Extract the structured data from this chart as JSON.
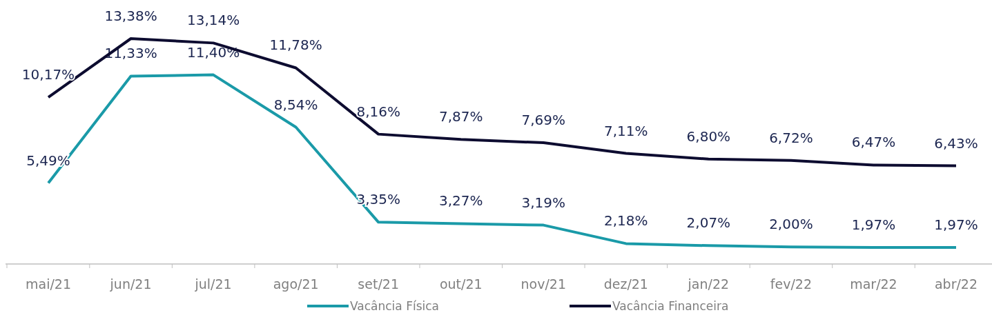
{
  "chart_data": {
    "type": "line",
    "categories": [
      "mai/21",
      "jun/21",
      "jul/21",
      "ago/21",
      "set/21",
      "out/21",
      "nov/21",
      "dez/21",
      "jan/22",
      "fev/22",
      "mar/22",
      "abr/22"
    ],
    "series": [
      {
        "name": "Vacância Física",
        "color": "#1a9aa8",
        "values": [
          5.49,
          11.33,
          11.4,
          8.54,
          3.35,
          3.27,
          3.19,
          2.18,
          2.07,
          2.0,
          1.97,
          1.97
        ],
        "value_labels": [
          "5,49%",
          "11,33%",
          "11,40%",
          "8,54%",
          "3,35%",
          "3,27%",
          "3,19%",
          "2,18%",
          "2,07%",
          "2,00%",
          "1,97%",
          "1,97%"
        ]
      },
      {
        "name": "Vacância Financeira",
        "color": "#0d0c30",
        "values": [
          10.17,
          13.38,
          13.14,
          11.78,
          8.16,
          7.87,
          7.69,
          7.11,
          6.8,
          6.72,
          6.47,
          6.43
        ],
        "value_labels": [
          "10,17%",
          "13,38%",
          "13,14%",
          "11,78%",
          "8,16%",
          "7,87%",
          "7,69%",
          "7,11%",
          "6,80%",
          "6,72%",
          "6,47%",
          "6,43%"
        ]
      }
    ],
    "legend": "bottom",
    "grid": false,
    "marker": "none",
    "line_style": "solid"
  }
}
